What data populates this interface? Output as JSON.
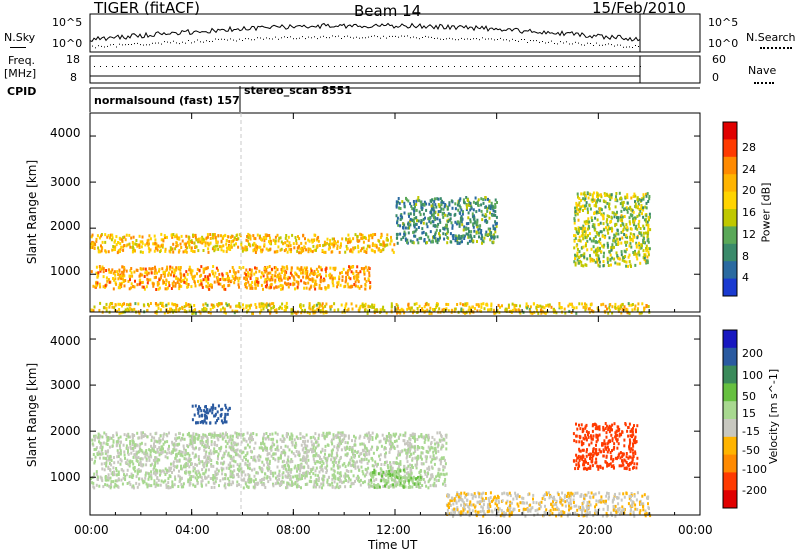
{
  "header": {
    "radar": "TIGER (fitACF)",
    "beam": "Beam 14",
    "date": "15/Feb/2010"
  },
  "top_panels": {
    "nsky_label": "N.Sky",
    "nsky_ticks": [
      "10^5",
      "10^0"
    ],
    "nsearch_label": "N.Search",
    "nsearch_ticks": [
      "10^5",
      "10^0"
    ],
    "freq_label_line1": "Freq.",
    "freq_label_line2": "[MHz]",
    "freq_ticks": [
      "18",
      "8"
    ],
    "nave_label": "Nave",
    "nave_ticks": [
      "60",
      "0"
    ],
    "cpid_label": "CPID"
  },
  "cpid": {
    "mode1": "normalsound (fast) 157",
    "mode2": "stereo_scan 8551"
  },
  "panels": {
    "ylabel": "Slant Range [km]",
    "yticks": [
      "4000",
      "3000",
      "2000",
      "1000"
    ],
    "xlabel": "Time UT",
    "xticks": [
      "00:00",
      "04:00",
      "08:00",
      "12:00",
      "16:00",
      "20:00",
      "00:00"
    ]
  },
  "power_scale": {
    "label": "Power [dB]",
    "ticks": [
      "28",
      "24",
      "20",
      "16",
      "12",
      "8",
      "4"
    ],
    "colors": [
      "#e00000",
      "#ff3a00",
      "#ff8a00",
      "#ffb400",
      "#ffd400",
      "#c0c800",
      "#5aa858",
      "#3a8a6a",
      "#2a6aa0",
      "#1a3ad0"
    ]
  },
  "velocity_scale": {
    "label": "Velocity [m s^-1]",
    "ticks": [
      "200",
      "100",
      "50",
      "15",
      "-15",
      "-50",
      "-100",
      "-200"
    ],
    "colors": [
      "#1818c0",
      "#2a5aa0",
      "#3a8a5a",
      "#66c040",
      "#a8d890",
      "#c8c8c0",
      "#ffb400",
      "#ff8a00",
      "#ff3a00",
      "#e00000"
    ]
  },
  "chart_data": [
    {
      "type": "heatmap",
      "title": "Power",
      "xlabel": "Time UT",
      "ylabel": "Slant Range [km]",
      "x_range": [
        "00:00",
        "24:00"
      ],
      "ylim": [
        180,
        4500
      ],
      "color_scale": {
        "label": "Power [dB]",
        "range": [
          0,
          32
        ]
      },
      "features": [
        {
          "time": [
            "00:00",
            "12:00"
          ],
          "range_km": [
            1500,
            1900
          ],
          "power_db": 20
        },
        {
          "time": [
            "00:00",
            "11:00"
          ],
          "range_km": [
            700,
            1200
          ],
          "power_db": 22
        },
        {
          "time": [
            "12:00",
            "16:00"
          ],
          "range_km": [
            1700,
            2700
          ],
          "power_db": 8
        },
        {
          "time": [
            "19:00",
            "22:00"
          ],
          "range_km": [
            1200,
            2800
          ],
          "power_db": 14
        },
        {
          "time": [
            "00:00",
            "22:00"
          ],
          "range_km": [
            180,
            400
          ],
          "power_db": 18
        }
      ]
    },
    {
      "type": "heatmap",
      "title": "Velocity",
      "xlabel": "Time UT",
      "ylabel": "Slant Range [km]",
      "x_range": [
        "00:00",
        "24:00"
      ],
      "ylim": [
        180,
        4500
      ],
      "color_scale": {
        "label": "Velocity [m s^-1]",
        "range": [
          -250,
          250
        ]
      },
      "features": [
        {
          "time": [
            "00:00",
            "14:00"
          ],
          "range_km": [
            800,
            2000
          ],
          "velocity": 0
        },
        {
          "time": [
            "04:00",
            "05:30"
          ],
          "range_km": [
            2200,
            2600
          ],
          "velocity": 200
        },
        {
          "time": [
            "11:00",
            "13:00"
          ],
          "range_km": [
            800,
            1200
          ],
          "velocity": 50
        },
        {
          "time": [
            "19:00",
            "21:30"
          ],
          "range_km": [
            1200,
            2200
          ],
          "velocity": -200
        },
        {
          "time": [
            "14:00",
            "22:00"
          ],
          "range_km": [
            180,
            700
          ],
          "velocity": -50
        }
      ]
    }
  ]
}
